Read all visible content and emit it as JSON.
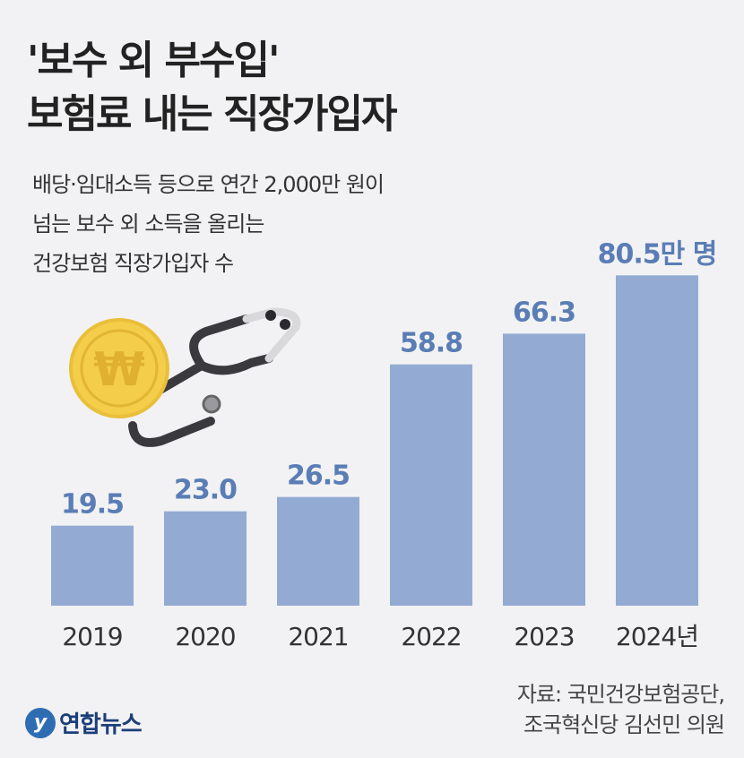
{
  "title_lines": [
    "'보수 외 부수입'",
    "보험료 내는 직장가입자"
  ],
  "subtitle_lines": [
    "배당·임대소득 등으로 연간 2,000만 원이",
    "넘는 보수 외 소득을 올리는",
    "건강보험 직장가입자 수"
  ],
  "source_lines": [
    "자료: 국민건강보험공단,",
    "조국혁신당 김선민 의원"
  ],
  "logo": {
    "text": "연합뉴스",
    "mark": "y"
  },
  "colors": {
    "bar": "#93abd3",
    "value_label": "#5a7db5",
    "background": "#f2f2f4"
  },
  "chart_data": {
    "type": "bar",
    "title": "'보수 외 부수입' 보험료 내는 직장가입자",
    "categories": [
      "2019",
      "2020",
      "2021",
      "2022",
      "2023",
      "2024년"
    ],
    "values": [
      19.5,
      23.0,
      26.5,
      58.8,
      66.3,
      80.5
    ],
    "value_labels": [
      "19.5",
      "23.0",
      "26.5",
      "58.8",
      "66.3",
      "80.5만 명"
    ],
    "unit": "만 명",
    "xlabel": "",
    "ylabel": "",
    "ylim": [
      0,
      85
    ],
    "grid": false
  }
}
